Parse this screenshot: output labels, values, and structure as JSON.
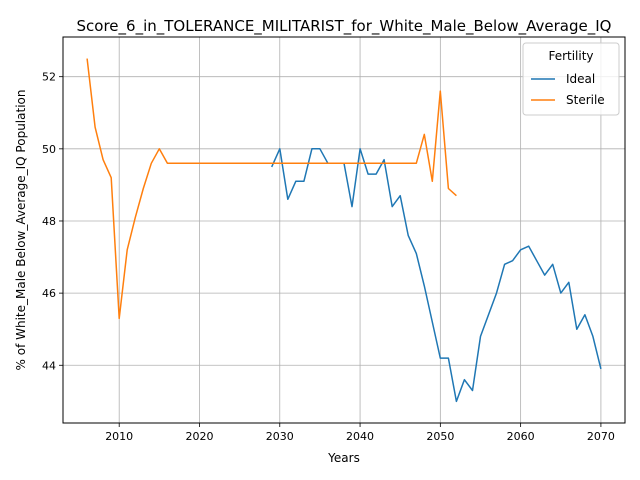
{
  "chart_data": {
    "type": "line",
    "title": "Score_6_in_TOLERANCE_MILITARIST_for_White_Male_Below_Average_IQ",
    "xlabel": "Years",
    "ylabel": "% of White_Male Below_Average_IQ Population",
    "xlim": [
      2003,
      2073
    ],
    "ylim": [
      42.4,
      53.1
    ],
    "xticks": [
      2010,
      2020,
      2030,
      2040,
      2050,
      2060,
      2070
    ],
    "yticks": [
      44,
      46,
      48,
      50,
      52
    ],
    "grid": true,
    "legend": {
      "title": "Fertility",
      "placement": "top-right"
    },
    "series": [
      {
        "name": "Ideal",
        "color": "#1f77b4",
        "x": [
          2029,
          2030,
          2031,
          2032,
          2033,
          2034,
          2035,
          2036,
          2037,
          2038,
          2039,
          2040,
          2041,
          2042,
          2043,
          2044,
          2045,
          2046,
          2047,
          2048,
          2049,
          2050,
          2051,
          2052,
          2053,
          2054,
          2055,
          2056,
          2057,
          2058,
          2059,
          2060,
          2061,
          2062,
          2063,
          2064,
          2065,
          2066,
          2067,
          2068,
          2069,
          2070
        ],
        "y": [
          49.5,
          50.0,
          48.6,
          49.1,
          49.1,
          50.0,
          50.0,
          49.6,
          49.6,
          49.6,
          48.4,
          50.0,
          49.3,
          49.3,
          49.7,
          48.4,
          48.7,
          47.6,
          47.1,
          46.2,
          45.2,
          44.2,
          44.2,
          43.0,
          43.6,
          43.3,
          44.8,
          45.4,
          46.0,
          46.8,
          46.9,
          47.2,
          47.3,
          46.9,
          46.5,
          46.8,
          46.0,
          46.3,
          45.0,
          45.4,
          44.8,
          43.9
        ]
      },
      {
        "name": "Sterile",
        "color": "#ff7f0e",
        "x": [
          2006,
          2007,
          2008,
          2009,
          2010,
          2011,
          2012,
          2013,
          2014,
          2015,
          2016,
          2017,
          2018,
          2019,
          2020,
          2021,
          2022,
          2023,
          2024,
          2025,
          2026,
          2027,
          2028,
          2029,
          2030,
          2031,
          2032,
          2033,
          2034,
          2035,
          2036,
          2037,
          2038,
          2039,
          2040,
          2041,
          2042,
          2043,
          2044,
          2045,
          2046,
          2047,
          2048,
          2049,
          2050,
          2051,
          2052
        ],
        "y": [
          52.5,
          50.6,
          49.7,
          49.2,
          45.3,
          47.2,
          48.1,
          48.9,
          49.6,
          50.0,
          49.6,
          49.6,
          49.6,
          49.6,
          49.6,
          49.6,
          49.6,
          49.6,
          49.6,
          49.6,
          49.6,
          49.6,
          49.6,
          49.6,
          49.6,
          49.6,
          49.6,
          49.6,
          49.6,
          49.6,
          49.6,
          49.6,
          49.6,
          49.6,
          49.6,
          49.6,
          49.6,
          49.6,
          49.6,
          49.6,
          49.6,
          49.6,
          50.4,
          49.1,
          51.6,
          48.9,
          48.7
        ]
      }
    ]
  }
}
